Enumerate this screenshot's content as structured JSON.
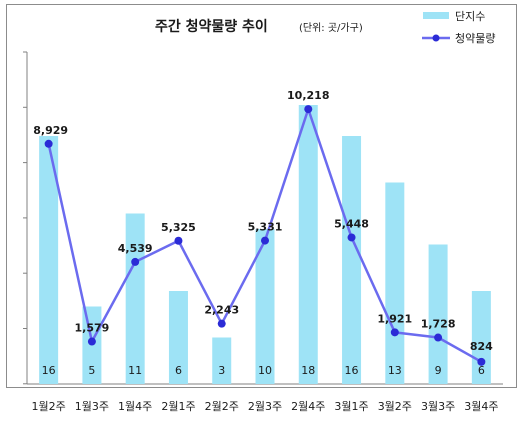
{
  "chart_data": {
    "type": "bar+line",
    "title": "주간 청약물량 추이",
    "subtitle": "(단위: 곳/가구)",
    "categories": [
      "1월2주",
      "1월3주",
      "1월4주",
      "2월1주",
      "2월2주",
      "2월3주",
      "2월4주",
      "3월1주",
      "3월2주",
      "3월3주",
      "3월4주"
    ],
    "series": [
      {
        "name": "단지수",
        "type": "bar",
        "color": "#9ee3f6",
        "values": [
          16,
          5,
          11,
          6,
          3,
          10,
          18,
          16,
          13,
          9,
          6
        ],
        "labels": [
          "16",
          "5",
          "11",
          "6",
          "3",
          "10",
          "18",
          "16",
          "13",
          "9",
          "6"
        ]
      },
      {
        "name": "청약물량",
        "type": "line",
        "color": "#6b6bef",
        "marker_color": "#2b2bd6",
        "values": [
          8929,
          1579,
          4539,
          5325,
          2243,
          5331,
          10218,
          5448,
          1921,
          1728,
          824
        ],
        "labels": [
          "8,929",
          "1,579",
          "4,539",
          "5,325",
          "2,243",
          "5,331",
          "10,218",
          "5,448",
          "1,921",
          "1,728",
          "824"
        ]
      }
    ],
    "legend_position": "top-right",
    "grid": false
  }
}
